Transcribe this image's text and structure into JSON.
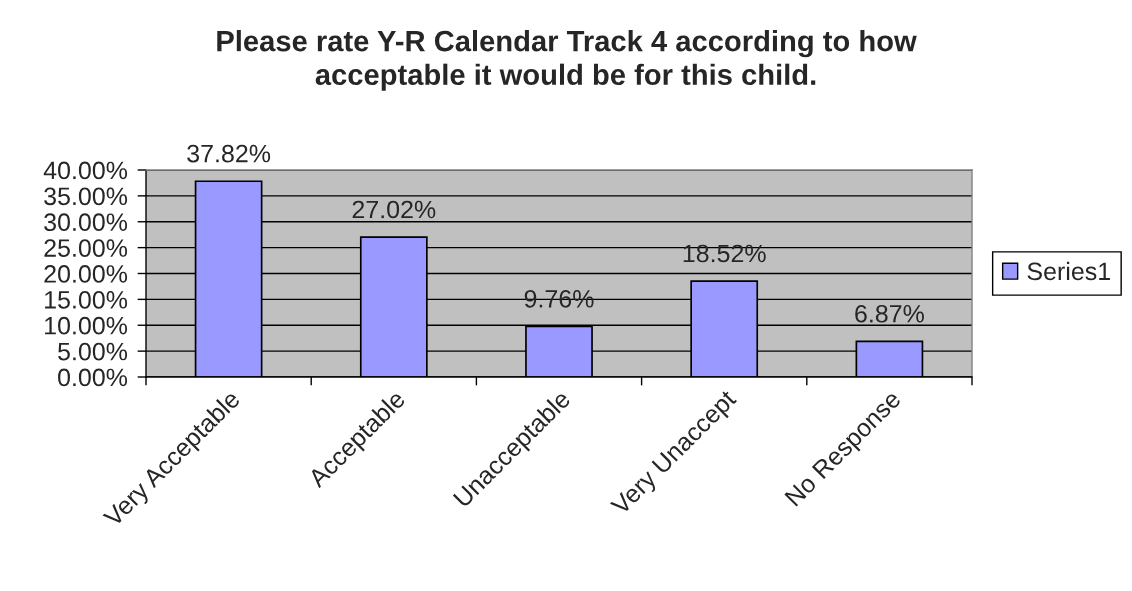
{
  "chart_data": {
    "type": "bar",
    "title": "Please rate Y-R Calendar Track 4 according to how\nacceptable it would be for this child.",
    "categories": [
      "Very Acceptable",
      "Acceptable",
      "Unacceptable",
      "Very Unaccept",
      "No Response"
    ],
    "series": [
      {
        "name": "Series1",
        "color": "#9999ff",
        "values": [
          37.82,
          27.02,
          9.76,
          18.52,
          6.87
        ],
        "value_labels": [
          "37.82%",
          "27.02%",
          "9.76%",
          "18.52%",
          "6.87%"
        ]
      }
    ],
    "ylim": [
      0,
      40
    ],
    "yticks": [
      {
        "value": 0,
        "label": "0.00%"
      },
      {
        "value": 5,
        "label": "5.00%"
      },
      {
        "value": 10,
        "label": "10.00%"
      },
      {
        "value": 15,
        "label": "15.00%"
      },
      {
        "value": 20,
        "label": "20.00%"
      },
      {
        "value": 25,
        "label": "25.00%"
      },
      {
        "value": 30,
        "label": "30.00%"
      },
      {
        "value": 35,
        "label": "35.00%"
      },
      {
        "value": 40,
        "label": "40.00%"
      }
    ],
    "grid": "y",
    "legend": "right"
  }
}
